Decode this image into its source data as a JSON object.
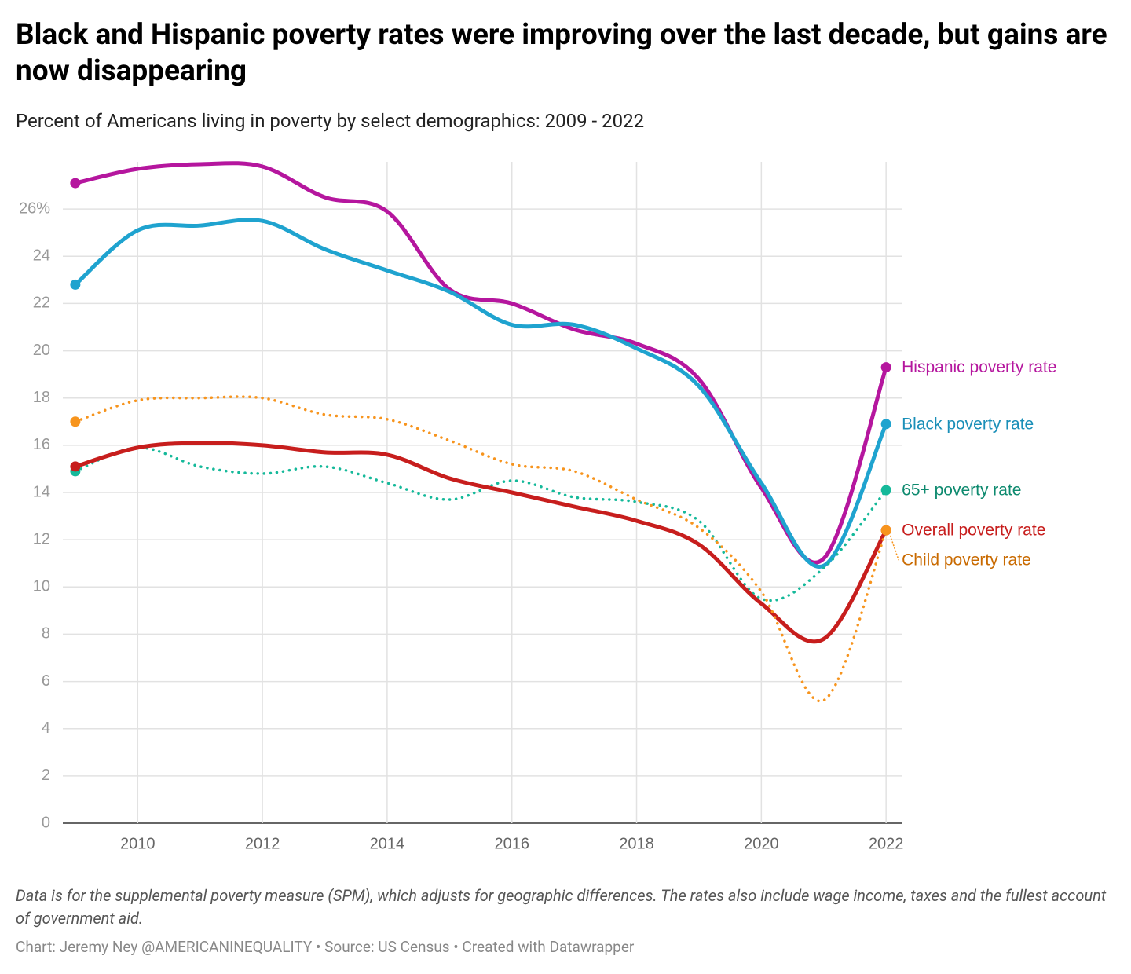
{
  "chart_data": {
    "type": "line",
    "title": "Black and Hispanic poverty rates were improving over the last decade, but gains are now disappearing",
    "subtitle": "Percent of Americans living in poverty by select demographics: 2009 - 2022",
    "notes": "Data is for the supplemental poverty measure (SPM), which adjusts for geographic differences. The rates also include wage income, taxes and the fullest account of government aid.",
    "credit": "Chart: Jeremy Ney @AMERICANINEQUALITY • Source: US Census • Created with Datawrapper",
    "x": [
      2009,
      2010,
      2011,
      2012,
      2013,
      2014,
      2015,
      2016,
      2017,
      2018,
      2019,
      2020,
      2021,
      2022
    ],
    "xlim": [
      2008.8,
      2022.25
    ],
    "xticks": [
      2010,
      2012,
      2014,
      2016,
      2018,
      2020,
      2022
    ],
    "ylim": [
      0,
      28
    ],
    "yticks": [
      0,
      2,
      4,
      6,
      8,
      10,
      12,
      14,
      16,
      18,
      20,
      22,
      24,
      {
        "value": 26,
        "label": "26%"
      }
    ],
    "grid": true,
    "series": [
      {
        "name": "Hispanic poverty rate",
        "color": "#b5169e",
        "label_color": "#b5169e",
        "dashed": false,
        "values": [
          27.1,
          27.7,
          27.9,
          27.8,
          26.5,
          25.9,
          22.6,
          22.0,
          20.9,
          20.3,
          18.8,
          14.2,
          11.2,
          19.3
        ]
      },
      {
        "name": "Black poverty rate",
        "color": "#1fa3cf",
        "label_color": "#1a8fb8",
        "dashed": false,
        "values": [
          22.8,
          25.1,
          25.3,
          25.5,
          24.3,
          23.4,
          22.5,
          21.1,
          21.1,
          20.1,
          18.5,
          14.4,
          10.9,
          16.9
        ]
      },
      {
        "name": "65+ poverty rate",
        "color": "#15b99a",
        "label_color": "#0e8a6f",
        "dashed": true,
        "values": [
          14.9,
          15.9,
          15.1,
          14.8,
          15.1,
          14.4,
          13.7,
          14.5,
          13.8,
          13.6,
          12.8,
          9.5,
          10.8,
          14.1
        ]
      },
      {
        "name": "Overall poverty rate",
        "color": "#c71e1d",
        "label_color": "#c71e1d",
        "dashed": false,
        "values": [
          15.1,
          15.9,
          16.1,
          16.0,
          15.7,
          15.6,
          14.6,
          14.0,
          13.4,
          12.8,
          11.8,
          9.3,
          7.8,
          12.4
        ]
      },
      {
        "name": "Child poverty rate",
        "color": "#f7941d",
        "label_color": "#c96a00",
        "dashed": true,
        "values": [
          17.0,
          17.9,
          18.0,
          18.0,
          17.3,
          17.1,
          16.2,
          15.2,
          14.9,
          13.7,
          12.5,
          9.8,
          5.2,
          12.4
        ]
      }
    ]
  }
}
